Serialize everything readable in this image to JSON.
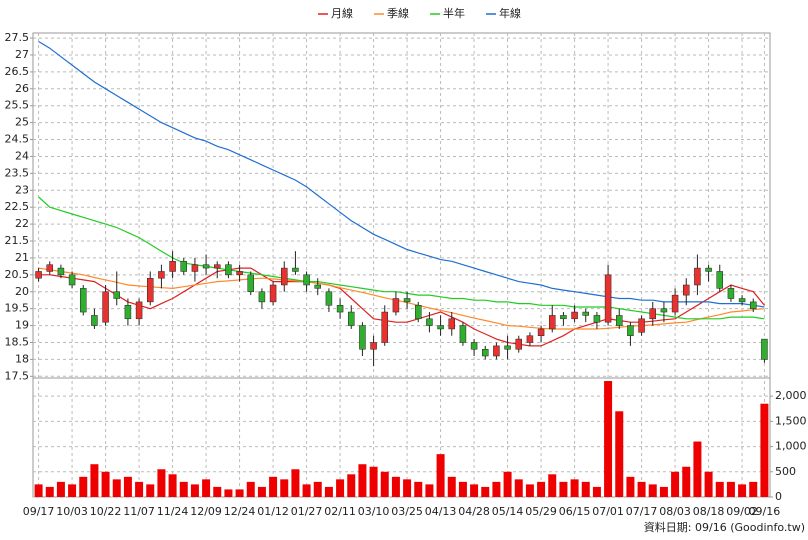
{
  "chart_data": [
    {
      "type": "candlestick",
      "up_color": "#e8322f",
      "down_color": "#2fae2f",
      "open": [
        20.4,
        20.6,
        20.7,
        20.5,
        20.1,
        19.3,
        19.1,
        20.0,
        19.6,
        19.2,
        19.7,
        20.4,
        20.6,
        20.9,
        20.6,
        20.8,
        20.7,
        20.8,
        20.5,
        20.5,
        20.0,
        19.7,
        20.2,
        20.7,
        20.5,
        20.2,
        20.0,
        19.6,
        19.4,
        19.0,
        18.3,
        18.5,
        19.4,
        19.8,
        19.6,
        19.2,
        19.0,
        18.9,
        19.0,
        18.5,
        18.3,
        18.1,
        18.4,
        18.3,
        18.5,
        18.7,
        18.9,
        19.3,
        19.2,
        19.4,
        19.3,
        19.1,
        19.3,
        19.0,
        18.8,
        19.2,
        19.5,
        19.4,
        19.9,
        20.2,
        20.7,
        20.6,
        20.1,
        19.8,
        19.7,
        18.6
      ],
      "high": [
        20.7,
        20.9,
        20.8,
        20.6,
        20.2,
        19.5,
        20.2,
        20.6,
        19.8,
        19.8,
        20.6,
        20.8,
        21.2,
        21.0,
        21.0,
        21.1,
        20.9,
        20.9,
        20.8,
        20.6,
        20.1,
        20.3,
        20.9,
        21.2,
        20.6,
        20.4,
        20.1,
        19.8,
        19.6,
        19.1,
        18.7,
        19.6,
        20.0,
        20.0,
        19.7,
        19.4,
        19.3,
        19.4,
        19.1,
        18.6,
        18.4,
        18.5,
        18.7,
        18.7,
        18.8,
        19.0,
        19.6,
        19.4,
        19.6,
        19.5,
        19.4,
        20.8,
        19.5,
        19.1,
        19.3,
        19.7,
        19.7,
        20.1,
        20.4,
        21.1,
        20.8,
        20.8,
        20.2,
        19.9,
        19.8,
        18.6
      ],
      "low": [
        20.3,
        20.5,
        20.4,
        20.1,
        19.3,
        18.9,
        19.0,
        19.6,
        19.0,
        19.0,
        19.6,
        20.1,
        20.4,
        20.5,
        20.3,
        20.5,
        20.4,
        20.4,
        20.3,
        19.9,
        19.5,
        19.6,
        20.0,
        20.5,
        20.0,
        19.9,
        19.4,
        19.2,
        18.9,
        18.1,
        17.8,
        18.4,
        19.3,
        19.5,
        19.1,
        18.8,
        18.7,
        18.7,
        18.4,
        18.1,
        18.0,
        18.0,
        18.0,
        18.2,
        18.4,
        18.5,
        18.8,
        19.0,
        19.1,
        19.1,
        18.9,
        19.0,
        18.9,
        18.4,
        18.7,
        19.0,
        19.1,
        19.3,
        19.6,
        19.9,
        20.3,
        20.0,
        19.7,
        19.6,
        19.4,
        17.9
      ],
      "close": [
        20.6,
        20.8,
        20.5,
        20.2,
        19.4,
        19.0,
        20.0,
        19.8,
        19.2,
        19.7,
        20.4,
        20.6,
        20.9,
        20.6,
        20.8,
        20.7,
        20.8,
        20.5,
        20.6,
        20.0,
        19.7,
        20.2,
        20.7,
        20.6,
        20.2,
        20.1,
        19.6,
        19.4,
        19.0,
        18.3,
        18.5,
        19.4,
        19.8,
        19.7,
        19.2,
        19.0,
        18.9,
        19.2,
        18.5,
        18.3,
        18.1,
        18.4,
        18.3,
        18.6,
        18.7,
        18.9,
        19.3,
        19.2,
        19.4,
        19.3,
        19.1,
        20.5,
        19.0,
        18.7,
        19.2,
        19.5,
        19.4,
        19.9,
        20.2,
        20.7,
        20.6,
        20.1,
        19.8,
        19.7,
        19.5,
        18.0
      ],
      "series": [
        {
          "name": "月線",
          "color": "#e02020",
          "values": [
            20.5,
            20.5,
            20.45,
            20.4,
            20.35,
            20.3,
            20.1,
            19.9,
            19.7,
            19.6,
            19.5,
            19.65,
            19.8,
            20.0,
            20.2,
            20.4,
            20.6,
            20.65,
            20.7,
            20.7,
            20.5,
            20.3,
            20.3,
            20.3,
            20.3,
            20.25,
            20.2,
            20.1,
            19.8,
            19.5,
            19.2,
            19.15,
            19.1,
            19.1,
            19.2,
            19.3,
            19.4,
            19.25,
            19.1,
            18.9,
            18.75,
            18.6,
            18.5,
            18.45,
            18.4,
            18.4,
            18.55,
            18.7,
            18.9,
            19.0,
            19.1,
            19.2,
            19.15,
            19.1,
            19.1,
            19.13,
            19.17,
            19.2,
            19.4,
            19.6,
            19.8,
            20.0,
            20.2,
            20.1,
            20.0,
            19.6
          ]
        },
        {
          "name": "季線",
          "color": "#ff8a2a",
          "values": [
            20.7,
            20.65,
            20.6,
            20.55,
            20.5,
            20.42,
            20.35,
            20.28,
            20.2,
            20.17,
            20.15,
            20.12,
            20.1,
            20.15,
            20.2,
            20.25,
            20.3,
            20.32,
            20.35,
            20.38,
            20.4,
            20.38,
            20.35,
            20.32,
            20.3,
            20.25,
            20.2,
            20.12,
            20.05,
            19.98,
            19.9,
            19.82,
            19.75,
            19.68,
            19.6,
            19.52,
            19.45,
            19.38,
            19.3,
            19.22,
            19.15,
            19.08,
            19.0,
            18.98,
            18.95,
            18.92,
            18.9,
            18.9,
            18.9,
            18.9,
            18.9,
            18.92,
            18.95,
            18.98,
            19.0,
            19.02,
            19.05,
            19.08,
            19.1,
            19.18,
            19.25,
            19.32,
            19.4,
            19.43,
            19.47,
            19.5
          ]
        },
        {
          "name": "半年",
          "color": "#22cc22",
          "values": [
            22.8,
            22.5,
            22.4,
            22.3,
            22.2,
            22.1,
            22.0,
            21.9,
            21.75,
            21.6,
            21.4,
            21.2,
            21.0,
            20.85,
            20.8,
            20.75,
            20.7,
            20.65,
            20.6,
            20.55,
            20.5,
            20.45,
            20.4,
            20.35,
            20.3,
            20.3,
            20.25,
            20.2,
            20.15,
            20.1,
            20.05,
            20.0,
            20.0,
            19.95,
            19.9,
            19.9,
            19.85,
            19.8,
            19.8,
            19.75,
            19.75,
            19.7,
            19.7,
            19.65,
            19.65,
            19.6,
            19.6,
            19.6,
            19.55,
            19.55,
            19.55,
            19.55,
            19.5,
            19.45,
            19.4,
            19.35,
            19.3,
            19.25,
            19.2,
            19.2,
            19.2,
            19.2,
            19.25,
            19.25,
            19.25,
            19.2
          ]
        },
        {
          "name": "年線",
          "color": "#1f6fd0",
          "values": [
            27.4,
            27.2,
            26.95,
            26.7,
            26.45,
            26.2,
            26.0,
            25.8,
            25.6,
            25.4,
            25.2,
            25.0,
            24.85,
            24.7,
            24.55,
            24.45,
            24.3,
            24.2,
            24.05,
            23.9,
            23.75,
            23.6,
            23.45,
            23.3,
            23.1,
            22.85,
            22.6,
            22.35,
            22.1,
            21.9,
            21.7,
            21.55,
            21.4,
            21.25,
            21.15,
            21.05,
            20.95,
            20.9,
            20.8,
            20.7,
            20.6,
            20.5,
            20.4,
            20.3,
            20.25,
            20.2,
            20.1,
            20.05,
            20.0,
            19.95,
            19.9,
            19.85,
            19.8,
            19.8,
            19.75,
            19.75,
            19.7,
            19.7,
            19.7,
            19.7,
            19.7,
            19.65,
            19.65,
            19.65,
            19.6,
            19.55
          ]
        }
      ],
      "legend": "top",
      "ylim": [
        17.45,
        27.65
      ],
      "yticks": [
        17.5,
        18,
        18.5,
        19,
        19.5,
        20,
        20.5,
        21,
        21.5,
        22,
        22.5,
        23,
        23.5,
        24,
        24.5,
        25,
        25.5,
        26,
        26.5,
        27,
        27.5
      ],
      "grid": true
    },
    {
      "type": "bar",
      "color": "#ee0000",
      "categories": [
        "09/17",
        null,
        null,
        "10/03",
        null,
        null,
        "10/22",
        null,
        null,
        "11/07",
        null,
        null,
        "11/24",
        null,
        null,
        "12/09",
        null,
        null,
        "12/24",
        null,
        null,
        "01/12",
        null,
        null,
        "01/27",
        null,
        null,
        "02/11",
        null,
        null,
        "03/10",
        null,
        null,
        "03/25",
        null,
        null,
        "04/13",
        null,
        null,
        "04/28",
        null,
        null,
        "05/14",
        null,
        null,
        "05/29",
        null,
        null,
        "06/15",
        null,
        null,
        "07/01",
        null,
        null,
        "07/17",
        null,
        null,
        "08/03",
        null,
        null,
        "08/18",
        null,
        null,
        "09/02",
        null,
        "09/16"
      ],
      "values": [
        250,
        200,
        300,
        250,
        400,
        650,
        500,
        350,
        400,
        300,
        250,
        550,
        450,
        300,
        250,
        350,
        200,
        150,
        150,
        300,
        200,
        400,
        350,
        550,
        250,
        300,
        200,
        350,
        450,
        650,
        600,
        500,
        400,
        350,
        300,
        250,
        850,
        400,
        300,
        250,
        200,
        300,
        500,
        350,
        250,
        300,
        450,
        300,
        350,
        300,
        200,
        2300,
        1700,
        400,
        300,
        250,
        200,
        500,
        600,
        1100,
        500,
        300,
        300,
        250,
        300,
        1850
      ],
      "ylim": [
        0,
        2360
      ],
      "yticks": [
        0,
        500,
        {
          "value": 1000,
          "label": "1,000"
        },
        {
          "value": 1500,
          "label": "1,500"
        },
        {
          "value": 2000,
          "label": "2,000"
        }
      ],
      "grid": true
    }
  ],
  "footnote": "資料日期: 09/16 (Goodinfo.tw)"
}
